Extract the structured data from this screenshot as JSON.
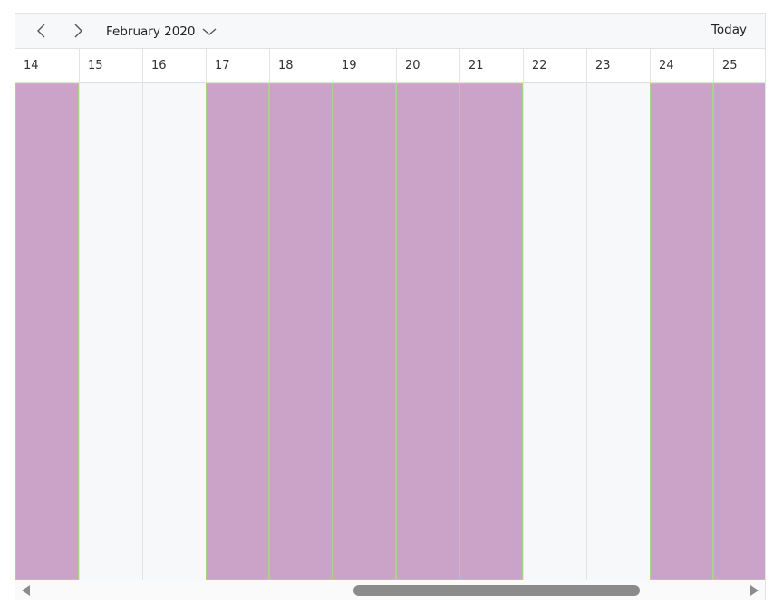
{
  "toolbar": {
    "prev_icon": "chevron-left-icon",
    "next_icon": "chevron-right-icon",
    "month_label": "February 2020",
    "dropdown_icon": "chevron-down-icon",
    "today_label": "Today"
  },
  "days": [
    {
      "label": "14",
      "has_event": true
    },
    {
      "label": "15",
      "has_event": false
    },
    {
      "label": "16",
      "has_event": false
    },
    {
      "label": "17",
      "has_event": true
    },
    {
      "label": "18",
      "has_event": true
    },
    {
      "label": "19",
      "has_event": true
    },
    {
      "label": "20",
      "has_event": true
    },
    {
      "label": "21",
      "has_event": true
    },
    {
      "label": "22",
      "has_event": false
    },
    {
      "label": "23",
      "has_event": false
    },
    {
      "label": "24",
      "has_event": true
    },
    {
      "label": "25",
      "has_event": true
    }
  ],
  "colors": {
    "event_fill": "#cba3c8",
    "event_border": "#a9d386",
    "empty_fill": "#f7f8fa"
  },
  "scrollbar": {
    "left_icon": "scroll-left-arrow-icon",
    "right_icon": "scroll-right-arrow-icon"
  }
}
